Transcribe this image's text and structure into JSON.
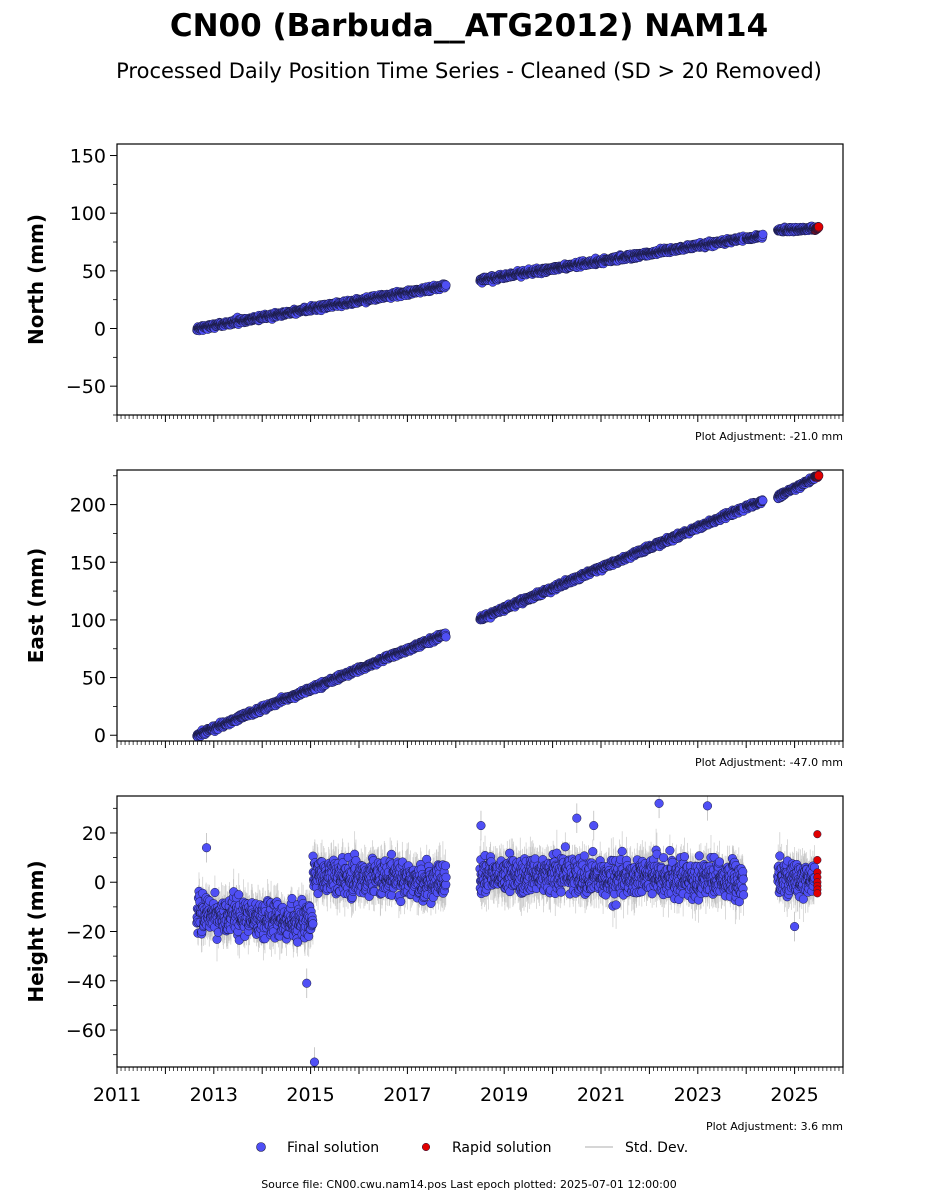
{
  "title": "CN00 (Barbuda__ATG2012) NAM14",
  "subtitle": "Processed Daily Position Time Series - Cleaned (SD > 20 Removed)",
  "footer": "Source file: CN00.cwu.nam14.pos  Last epoch plotted: 2025-07-01 12:00:00",
  "colors": {
    "final": "#4f4ff5",
    "final_edge": "#1a1a40",
    "rapid": "#e00000",
    "stddev": "#bdbdbd"
  },
  "legend": {
    "final": "Final solution",
    "rapid": "Rapid solution",
    "stddev": "Std. Dev."
  },
  "chart_data": [
    {
      "type": "scatter",
      "ylabel": "North (mm)",
      "adjustment": "Plot Adjustment: -21.0 mm",
      "xlim": [
        2011,
        2026
      ],
      "ylim": [
        -75,
        160
      ],
      "yticks": [
        -50,
        0,
        50,
        100,
        150
      ],
      "ytick_labels": [
        "−50",
        "0",
        "50",
        "100",
        "150"
      ],
      "grid": false,
      "series": [
        {
          "name": "Final solution",
          "segments": [
            {
              "start": 2012.65,
              "end": 2017.8,
              "y0": 0,
              "y1": 37,
              "scatter": 1.8,
              "sd": 2.5
            },
            {
              "start": 2018.5,
              "end": 2023.95,
              "y0": 42,
              "y1": 78,
              "scatter": 1.8,
              "sd": 2.5
            },
            {
              "start": 2024.0,
              "end": 2024.35,
              "y0": 78,
              "y1": 80,
              "scatter": 1.5,
              "sd": 2.5
            },
            {
              "start": 2024.65,
              "end": 2025.42,
              "y0": 85,
              "y1": 87,
              "scatter": 1.6,
              "sd": 2.5
            }
          ]
        },
        {
          "name": "Rapid solution",
          "segments": [
            {
              "start": 2025.42,
              "end": 2025.5,
              "y0": 86,
              "y1": 88,
              "scatter": 1.0,
              "sd": 0
            }
          ]
        }
      ]
    },
    {
      "type": "scatter",
      "ylabel": "East (mm)",
      "adjustment": "Plot Adjustment: -47.0 mm",
      "xlim": [
        2011,
        2026
      ],
      "ylim": [
        -5,
        230
      ],
      "yticks": [
        0,
        50,
        100,
        150,
        200
      ],
      "ytick_labels": [
        "0",
        "50",
        "100",
        "150",
        "200"
      ],
      "grid": false,
      "series": [
        {
          "name": "Final solution",
          "segments": [
            {
              "start": 2012.65,
              "end": 2017.8,
              "y0": 0,
              "y1": 88,
              "scatter": 1.8,
              "sd": 2.5
            },
            {
              "start": 2018.5,
              "end": 2023.95,
              "y0": 101,
              "y1": 197,
              "scatter": 1.8,
              "sd": 2.5
            },
            {
              "start": 2024.0,
              "end": 2024.35,
              "y0": 198,
              "y1": 203,
              "scatter": 1.5,
              "sd": 2.5
            },
            {
              "start": 2024.65,
              "end": 2025.42,
              "y0": 207,
              "y1": 223,
              "scatter": 1.6,
              "sd": 2.5
            }
          ]
        },
        {
          "name": "Rapid solution",
          "segments": [
            {
              "start": 2025.42,
              "end": 2025.5,
              "y0": 224,
              "y1": 225,
              "scatter": 0.8,
              "sd": 0
            }
          ]
        }
      ]
    },
    {
      "type": "scatter",
      "ylabel": "Height (mm)",
      "adjustment": "Plot Adjustment: 3.6 mm",
      "xlim": [
        2011,
        2026
      ],
      "ylim": [
        -75,
        35
      ],
      "yticks": [
        -60,
        -40,
        -20,
        0,
        20
      ],
      "ytick_labels": [
        "−60",
        "−40",
        "−20",
        "0",
        "20"
      ],
      "xticks": [
        2011,
        2013,
        2015,
        2017,
        2019,
        2021,
        2023,
        2025
      ],
      "xtick_labels": [
        "2011",
        "2013",
        "2015",
        "2017",
        "2019",
        "2021",
        "2023",
        "2025"
      ],
      "grid": false,
      "series": [
        {
          "name": "Final solution",
          "segments": [
            {
              "start": 2012.65,
              "end": 2015.05,
              "y0": -13,
              "y1": -16,
              "scatter": 6.5,
              "sd": 7
            },
            {
              "start": 2015.05,
              "end": 2017.8,
              "y0": 3,
              "y1": 0,
              "scatter": 6.0,
              "sd": 7
            },
            {
              "start": 2018.5,
              "end": 2020.6,
              "y0": 3,
              "y1": 3,
              "scatter": 6.0,
              "sd": 7
            },
            {
              "start": 2020.6,
              "end": 2023.95,
              "y0": 2,
              "y1": 1,
              "scatter": 6.5,
              "sd": 7
            },
            {
              "start": 2024.65,
              "end": 2025.42,
              "y0": 2,
              "y1": 1,
              "scatter": 5.5,
              "sd": 7
            }
          ],
          "outliers": [
            {
              "x": 2012.85,
              "y": 14
            },
            {
              "x": 2015.08,
              "y": -73
            },
            {
              "x": 2014.92,
              "y": -41
            },
            {
              "x": 2022.2,
              "y": 32
            },
            {
              "x": 2023.2,
              "y": 31
            },
            {
              "x": 2018.52,
              "y": 23
            },
            {
              "x": 2020.85,
              "y": 23
            },
            {
              "x": 2020.5,
              "y": 26
            },
            {
              "x": 2025.0,
              "y": -18
            }
          ]
        },
        {
          "name": "Rapid solution",
          "points": [
            {
              "x": 2025.47,
              "y": 19.5
            },
            {
              "x": 2025.47,
              "y": 9
            },
            {
              "x": 2025.47,
              "y": 4
            },
            {
              "x": 2025.47,
              "y": 2
            },
            {
              "x": 2025.47,
              "y": 0
            },
            {
              "x": 2025.47,
              "y": -1.5
            },
            {
              "x": 2025.47,
              "y": -3
            },
            {
              "x": 2025.47,
              "y": -4.5
            }
          ]
        }
      ]
    }
  ]
}
